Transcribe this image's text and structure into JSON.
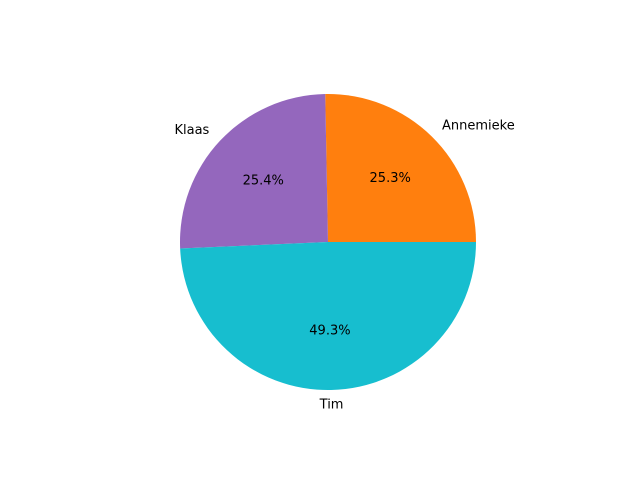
{
  "chart_data": {
    "type": "pie",
    "title": "",
    "start_angle_deg": 0,
    "direction": "counterclockwise",
    "slices": [
      {
        "label": "Annemieke",
        "value": 25.3,
        "pct_text": "25.3%",
        "color": "#ff7f0e"
      },
      {
        "label": "Klaas",
        "value": 25.4,
        "pct_text": "25.4%",
        "color": "#9467bd"
      },
      {
        "label": "Tim",
        "value": 49.3,
        "pct_text": "49.3%",
        "color": "#17becf"
      }
    ]
  }
}
